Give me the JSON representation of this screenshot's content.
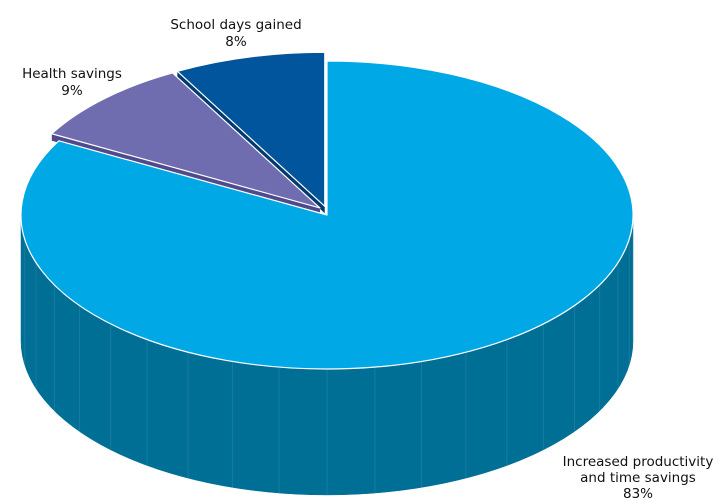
{
  "chart_data": {
    "type": "pie",
    "style": "3d-exploded",
    "title": "",
    "slices": [
      {
        "label": "Increased productivity and time savings",
        "label_lines": [
          "Increased productivity",
          "and time savings"
        ],
        "value": 83,
        "display": "83%",
        "color": "#00a8e6",
        "side_color": "#006f96",
        "exploded": false
      },
      {
        "label": "Health savings",
        "label_lines": [
          "Health savings"
        ],
        "value": 9,
        "display": "9%",
        "color": "#6f6cb0",
        "side_color": "#4e4a8c",
        "exploded": true
      },
      {
        "label": "School days gained",
        "label_lines": [
          "School days gained"
        ],
        "value": 8,
        "display": "8%",
        "color": "#00559c",
        "side_color": "#003a6e",
        "exploded": true
      }
    ]
  }
}
